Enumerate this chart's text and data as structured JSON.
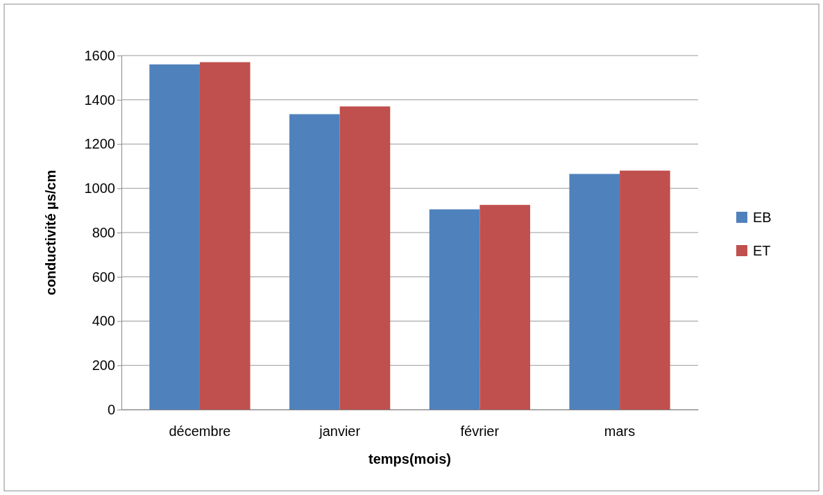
{
  "chart_data": {
    "type": "bar",
    "xlabel": "temps(mois)",
    "ylabel": "conductivité  µs/cm",
    "categories": [
      "décembre",
      "janvier",
      "février",
      "mars"
    ],
    "series": [
      {
        "name": "EB",
        "color": "#4f81bd",
        "values": [
          1560,
          1335,
          905,
          1065
        ]
      },
      {
        "name": "ET",
        "color": "#c0504d",
        "values": [
          1570,
          1370,
          925,
          1080
        ]
      }
    ],
    "ylim": [
      0,
      1600
    ],
    "yticks": [
      0,
      200,
      400,
      600,
      800,
      1000,
      1200,
      1400,
      1600
    ],
    "grid": "y",
    "legend": "right"
  }
}
